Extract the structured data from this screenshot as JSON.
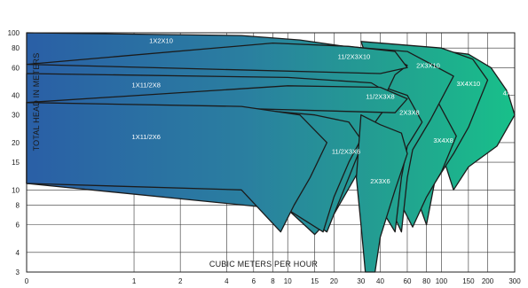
{
  "chart_data": {
    "type": "area",
    "title": "",
    "xlabel": "CUBIC METERS PER HOUR",
    "ylabel": "TOTAL HEAD IN METERS",
    "xscale": "log",
    "yscale": "log",
    "xlim": [
      0.2,
      300
    ],
    "ylim": [
      3,
      100
    ],
    "grid": true,
    "x_ticks": [
      {
        "value": 0.2,
        "label": "0"
      },
      {
        "value": 1,
        "label": "1"
      },
      {
        "value": 2,
        "label": "2"
      },
      {
        "value": 4,
        "label": "4"
      },
      {
        "value": 6,
        "label": "6"
      },
      {
        "value": 8,
        "label": "8"
      },
      {
        "value": 10,
        "label": "10"
      },
      {
        "value": 15,
        "label": "15"
      },
      {
        "value": 20,
        "label": "20"
      },
      {
        "value": 30,
        "label": "30"
      },
      {
        "value": 40,
        "label": "40"
      },
      {
        "value": 60,
        "label": "60"
      },
      {
        "value": 80,
        "label": "80"
      },
      {
        "value": 100,
        "label": "100"
      },
      {
        "value": 150,
        "label": "150"
      },
      {
        "value": 200,
        "label": "200"
      },
      {
        "value": 300,
        "label": "300"
      }
    ],
    "y_ticks": [
      {
        "value": 3,
        "label": "3"
      },
      {
        "value": 4,
        "label": "4"
      },
      {
        "value": 6,
        "label": "6"
      },
      {
        "value": 8,
        "label": "8"
      },
      {
        "value": 10,
        "label": "10"
      },
      {
        "value": 15,
        "label": "15"
      },
      {
        "value": 20,
        "label": "20"
      },
      {
        "value": 30,
        "label": "30"
      },
      {
        "value": 40,
        "label": "40"
      },
      {
        "value": 60,
        "label": "60"
      },
      {
        "value": 80,
        "label": "80"
      },
      {
        "value": 100,
        "label": "100"
      }
    ],
    "series": [
      {
        "name": "4X4X10",
        "label_at": [
          300,
          40
        ],
        "curve": [
          [
            60,
            82
          ],
          [
            150,
            73
          ],
          [
            210,
            60
          ],
          [
            270,
            42
          ],
          [
            300,
            30
          ],
          [
            230,
            19
          ],
          [
            150,
            14
          ],
          [
            120,
            10
          ]
        ]
      },
      {
        "name": "3X4X10",
        "label_at": [
          150,
          46
        ],
        "curve": [
          [
            30,
            88
          ],
          [
            100,
            80
          ],
          [
            160,
            68
          ],
          [
            200,
            50
          ],
          [
            150,
            25
          ],
          [
            120,
            17
          ],
          [
            90,
            11
          ],
          [
            80,
            6
          ]
        ]
      },
      {
        "name": "3X4X8",
        "label_at": [
          103,
          20
        ],
        "curve": [
          [
            20,
            55
          ],
          [
            60,
            49
          ],
          [
            90,
            40
          ],
          [
            125,
            22
          ],
          [
            100,
            13
          ],
          [
            80,
            9
          ],
          [
            65,
            5.8
          ]
        ]
      },
      {
        "name": "2X3X10",
        "label_at": [
          82,
          60
        ],
        "curve": [
          [
            15,
            85
          ],
          [
            60,
            76
          ],
          [
            120,
            53
          ],
          [
            85,
            28
          ],
          [
            65,
            18
          ],
          [
            60,
            12
          ],
          [
            55,
            5.4
          ]
        ]
      },
      {
        "name": "2X3X8",
        "label_at": [
          62,
          30
        ],
        "curve": [
          [
            12,
            55
          ],
          [
            35,
            48
          ],
          [
            60,
            40
          ],
          [
            75,
            27
          ],
          [
            60,
            19
          ],
          [
            55,
            12
          ],
          [
            50,
            5.4
          ]
        ]
      },
      {
        "name": "1X2X10",
        "label_at": [
          1.5,
          86
        ],
        "curve": [
          [
            0.2,
            100
          ],
          [
            5,
            96
          ],
          [
            12,
            90
          ],
          [
            40,
            76
          ],
          [
            60,
            62
          ],
          [
            50,
            54
          ],
          [
            35,
            26
          ],
          [
            30,
            14
          ],
          [
            20,
            7
          ],
          [
            15,
            5.2
          ],
          [
            10,
            7.5
          ],
          [
            5,
            10
          ],
          [
            0.2,
            11
          ]
        ]
      },
      {
        "name": "1X11/2X8",
        "label_at": [
          1.2,
          45
        ],
        "curve": [
          [
            0.2,
            55
          ],
          [
            10,
            52
          ],
          [
            35,
            48
          ],
          [
            50,
            39
          ],
          [
            40,
            30
          ],
          [
            32,
            22
          ],
          [
            25,
            12
          ],
          [
            20,
            7
          ],
          [
            18,
            5.4
          ],
          [
            12,
            7
          ],
          [
            6,
            10
          ],
          [
            0.2,
            11
          ]
        ]
      },
      {
        "name": "11/2X3X10",
        "label_at": [
          27,
          68
        ],
        "curve": [
          [
            8,
            86
          ],
          [
            25,
            82
          ],
          [
            50,
            76
          ],
          [
            60,
            60
          ],
          [
            40,
            55
          ],
          [
            0.2,
            63
          ]
        ]
      },
      {
        "name": "11/2X3X8",
        "label_at": [
          40,
          38
        ],
        "curve": [
          [
            10,
            46
          ],
          [
            40,
            45
          ],
          [
            60,
            38
          ],
          [
            50,
            31
          ],
          [
            0.2,
            36
          ]
        ]
      },
      {
        "name": "11/2X3X6",
        "label_at": [
          24,
          17
        ],
        "curve": [
          [
            5,
            33
          ],
          [
            15,
            30
          ],
          [
            25,
            27
          ],
          [
            30,
            21
          ],
          [
            25,
            15
          ],
          [
            20,
            9
          ],
          [
            17,
            5.4
          ],
          [
            10,
            7.5
          ],
          [
            0.2,
            11
          ]
        ]
      },
      {
        "name": "1X11/2X6",
        "label_at": [
          1.2,
          21
        ],
        "curve": [
          [
            0.2,
            36
          ],
          [
            5,
            34
          ],
          [
            12,
            30
          ],
          [
            18,
            20
          ],
          [
            14,
            12
          ],
          [
            11,
            8
          ],
          [
            9,
            5.4
          ],
          [
            5,
            10
          ],
          [
            0.2,
            11
          ]
        ]
      },
      {
        "name": "2X3X6",
        "label_at": [
          40,
          11
        ],
        "curve": [
          [
            30,
            30
          ],
          [
            40,
            26
          ],
          [
            55,
            23
          ],
          [
            60,
            17
          ],
          [
            50,
            10
          ],
          [
            40,
            5
          ],
          [
            37,
            3
          ],
          [
            32,
            3
          ],
          [
            30,
            6
          ],
          [
            28,
            12
          ]
        ]
      }
    ]
  }
}
